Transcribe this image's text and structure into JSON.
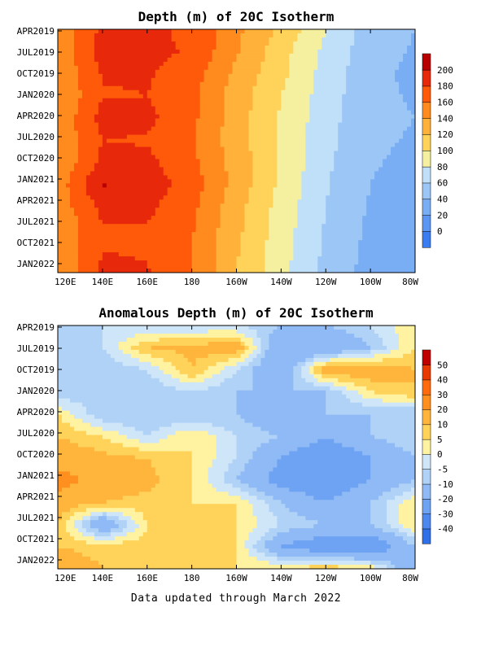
{
  "footer": "Data updated through March 2022",
  "chart_data": [
    {
      "type": "heatmap",
      "title": "Depth (m) of 20C Isotherm",
      "xlabel": "",
      "ylabel": "",
      "x_tick_labels": [
        "120E",
        "140E",
        "160E",
        "180",
        "160W",
        "140W",
        "120W",
        "100W",
        "80W"
      ],
      "y_tick_labels": [
        "APR2019",
        "JUL2019",
        "OCT2019",
        "JAN2020",
        "APR2020",
        "JUL2020",
        "OCT2020",
        "JAN2021",
        "APR2021",
        "JUL2021",
        "OCT2021",
        "JAN2022"
      ],
      "x": [
        120,
        140,
        160,
        180,
        200,
        220,
        240,
        260,
        280
      ],
      "y": [
        "APR2019",
        "JUL2019",
        "OCT2019",
        "JAN2020",
        "APR2020",
        "JUL2020",
        "OCT2020",
        "JAN2021",
        "APR2021",
        "JUL2021",
        "OCT2021",
        "JAN2022"
      ],
      "colorbar": {
        "levels": [
          0,
          20,
          40,
          60,
          80,
          100,
          120,
          140,
          160,
          180,
          200
        ],
        "labels": [
          "0",
          "20",
          "40",
          "60",
          "80",
          "100",
          "120",
          "140",
          "160",
          "180",
          "200"
        ],
        "colors": [
          "#3a7df0",
          "#5a96f2",
          "#7aaef4",
          "#9cc6f6",
          "#bfe0f8",
          "#f5f0a0",
          "#ffd35a",
          "#ffb13a",
          "#ff8a1e",
          "#ff5a0a",
          "#e8280a",
          "#b80000"
        ]
      },
      "values": [
        [
          145,
          185,
          185,
          175,
          145,
          115,
          80,
          50,
          40
        ],
        [
          145,
          188,
          185,
          178,
          142,
          108,
          75,
          48,
          38
        ],
        [
          142,
          182,
          182,
          170,
          135,
          105,
          72,
          46,
          35
        ],
        [
          140,
          178,
          180,
          165,
          130,
          100,
          70,
          45,
          38
        ],
        [
          142,
          188,
          185,
          165,
          130,
          98,
          68,
          44,
          40
        ],
        [
          145,
          180,
          178,
          162,
          128,
          98,
          66,
          44,
          38
        ],
        [
          142,
          185,
          185,
          165,
          132,
          98,
          64,
          42,
          35
        ],
        [
          148,
          202,
          192,
          170,
          132,
          96,
          62,
          40,
          32
        ],
        [
          148,
          186,
          185,
          165,
          128,
          92,
          60,
          38,
          30
        ],
        [
          142,
          178,
          178,
          162,
          125,
          90,
          58,
          36,
          28
        ],
        [
          140,
          180,
          178,
          160,
          122,
          88,
          56,
          34,
          25
        ],
        [
          142,
          185,
          182,
          160,
          120,
          86,
          55,
          32,
          22
        ]
      ]
    },
    {
      "type": "heatmap",
      "title": "Anomalous Depth (m) of 20C Isotherm",
      "xlabel": "",
      "ylabel": "",
      "x_tick_labels": [
        "120E",
        "140E",
        "160E",
        "180",
        "160W",
        "140W",
        "120W",
        "100W",
        "80W"
      ],
      "y_tick_labels": [
        "APR2019",
        "JUL2019",
        "OCT2019",
        "JAN2020",
        "APR2020",
        "JUL2020",
        "OCT2020",
        "JAN2021",
        "APR2021",
        "JUL2021",
        "OCT2021",
        "JAN2022"
      ],
      "x": [
        120,
        140,
        160,
        180,
        200,
        220,
        240,
        260,
        280
      ],
      "y": [
        "APR2019",
        "JUL2019",
        "OCT2019",
        "JAN2020",
        "APR2020",
        "JUL2020",
        "OCT2020",
        "JAN2021",
        "APR2021",
        "JUL2021",
        "OCT2021",
        "JAN2022"
      ],
      "colorbar": {
        "levels": [
          -40,
          -30,
          -20,
          -10,
          -5,
          0,
          5,
          10,
          20,
          30,
          40,
          50
        ],
        "labels": [
          "-40",
          "-30",
          "-20",
          "-10",
          "-5",
          "0",
          "5",
          "10",
          "20",
          "30",
          "40",
          "50"
        ],
        "colors": [
          "#2f6fe8",
          "#4d88ee",
          "#6ea2f2",
          "#8fbaf5",
          "#b0d2f7",
          "#cfe6f9",
          "#fff2a0",
          "#ffd35a",
          "#ffb43c",
          "#ff9020",
          "#ff6a0c",
          "#e83a00",
          "#c00000"
        ]
      },
      "values": [
        [
          -10,
          -5,
          -5,
          -5,
          -5,
          -10,
          -10,
          -5,
          5
        ],
        [
          -10,
          -5,
          10,
          12,
          15,
          -20,
          -20,
          -10,
          5
        ],
        [
          -5,
          -10,
          -5,
          10,
          -5,
          -20,
          15,
          15,
          10
        ],
        [
          -10,
          -5,
          -10,
          -5,
          -10,
          -10,
          -10,
          5,
          10
        ],
        [
          5,
          -10,
          -10,
          -10,
          -10,
          -20,
          -10,
          -10,
          -10
        ],
        [
          10,
          5,
          -5,
          5,
          -5,
          -10,
          -20,
          -10,
          -5
        ],
        [
          15,
          12,
          10,
          5,
          -5,
          -20,
          -30,
          -20,
          -10
        ],
        [
          25,
          15,
          12,
          5,
          -10,
          -25,
          -30,
          -20,
          -10
        ],
        [
          15,
          10,
          8,
          5,
          5,
          -10,
          -20,
          -10,
          5
        ],
        [
          10,
          -20,
          5,
          8,
          5,
          -5,
          -10,
          -10,
          5
        ],
        [
          10,
          8,
          8,
          8,
          5,
          -20,
          -30,
          -30,
          -10
        ],
        [
          15,
          10,
          10,
          10,
          5,
          5,
          10,
          5,
          -20
        ]
      ]
    }
  ]
}
